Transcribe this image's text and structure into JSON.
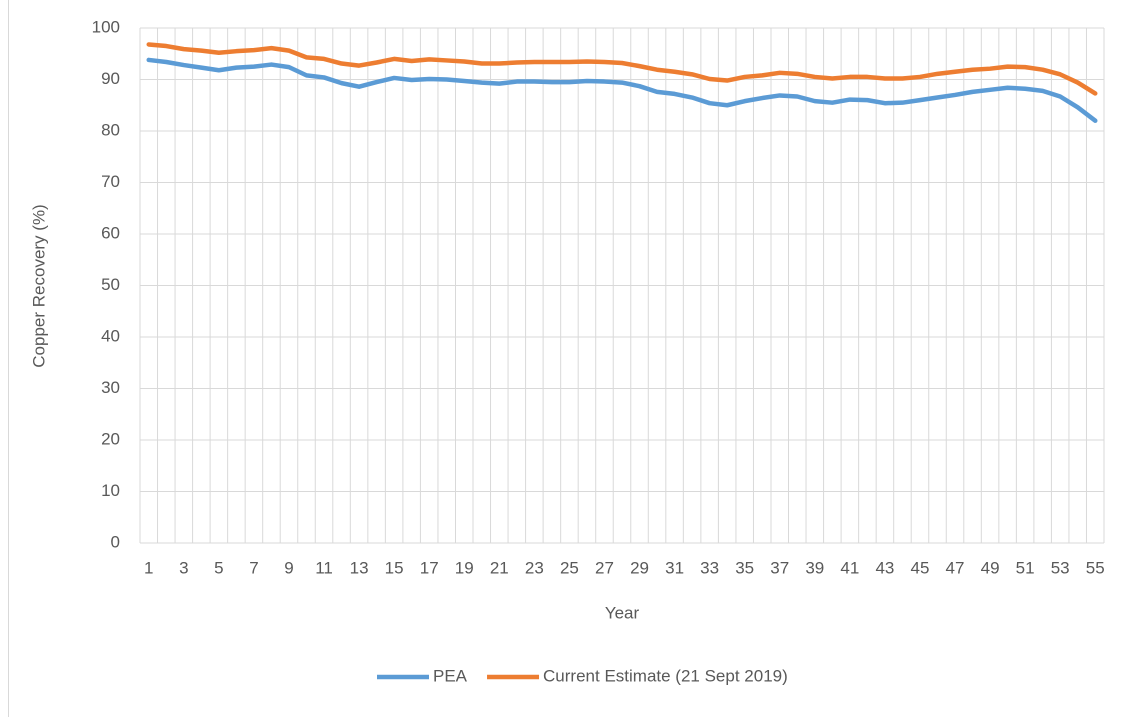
{
  "chart_data": {
    "type": "line",
    "x_label": "Year",
    "y_label": "Copper Recovery (%)",
    "categories": [
      1,
      null,
      3,
      null,
      5,
      null,
      7,
      null,
      9,
      null,
      11,
      null,
      13,
      null,
      15,
      null,
      17,
      null,
      19,
      null,
      21,
      null,
      23,
      null,
      25,
      null,
      27,
      null,
      29,
      null,
      31,
      null,
      33,
      null,
      35,
      null,
      37,
      null,
      39,
      null,
      41,
      null,
      43,
      null,
      45,
      null,
      47,
      null,
      49,
      null,
      51,
      null,
      53,
      null,
      55
    ],
    "series": [
      {
        "name": "PEA",
        "color": "#5b9bd5",
        "values": [
          93.8,
          93.4,
          92.8,
          92.3,
          91.8,
          92.3,
          92.5,
          92.9,
          92.4,
          90.8,
          90.4,
          89.3,
          88.6,
          89.5,
          90.3,
          89.9,
          90.1,
          90.0,
          89.7,
          89.4,
          89.2,
          89.6,
          89.6,
          89.5,
          89.5,
          89.7,
          89.6,
          89.4,
          88.7,
          87.6,
          87.2,
          86.5,
          85.4,
          85.0,
          85.8,
          86.4,
          86.9,
          86.7,
          85.8,
          85.5,
          86.1,
          86.0,
          85.4,
          85.5,
          86.0,
          86.5,
          87.0,
          87.6,
          88.0,
          88.4,
          88.2,
          87.8,
          86.7,
          84.6,
          82.0
        ]
      },
      {
        "name": "Current Estimate (21 Sept 2019)",
        "color": "#ed7d31",
        "values": [
          96.8,
          96.5,
          95.9,
          95.6,
          95.2,
          95.5,
          95.7,
          96.1,
          95.6,
          94.3,
          94.0,
          93.1,
          92.7,
          93.3,
          94.0,
          93.6,
          93.9,
          93.7,
          93.5,
          93.1,
          93.1,
          93.3,
          93.4,
          93.4,
          93.4,
          93.5,
          93.4,
          93.2,
          92.6,
          91.9,
          91.5,
          91.0,
          90.1,
          89.8,
          90.5,
          90.8,
          91.3,
          91.1,
          90.5,
          90.2,
          90.5,
          90.5,
          90.2,
          90.2,
          90.5,
          91.1,
          91.5,
          91.9,
          92.1,
          92.5,
          92.4,
          91.9,
          91.0,
          89.4,
          87.3
        ]
      }
    ],
    "ylim": [
      0,
      100
    ],
    "yticks": [
      0,
      10,
      20,
      30,
      40,
      50,
      60,
      70,
      80,
      90,
      100
    ],
    "grid": true,
    "legend": "bottom"
  }
}
